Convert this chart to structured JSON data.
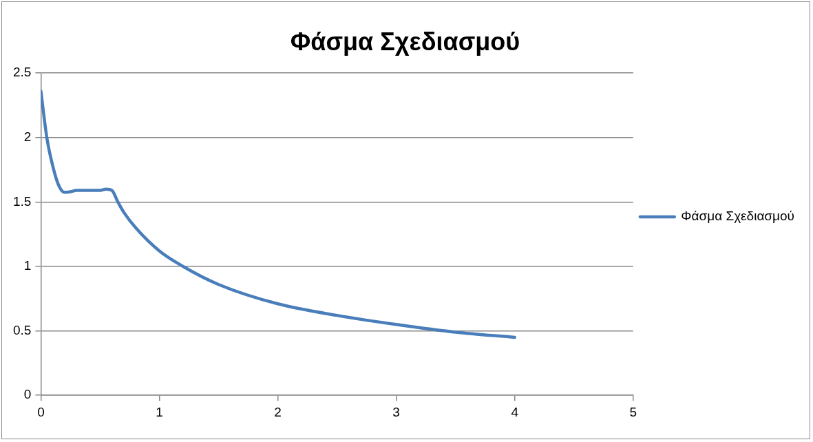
{
  "chart_data": {
    "type": "line",
    "title": "Φάσμα Σχεδιασμού",
    "series": [
      {
        "name": "Φάσμα Σχεδιασμού",
        "color": "#4a7ebb",
        "x": [
          0,
          0.05,
          0.1,
          0.15,
          0.2,
          0.25,
          0.3,
          0.4,
          0.5,
          0.55,
          0.6,
          0.65,
          0.7,
          0.8,
          1,
          1.2,
          1.5,
          2,
          2.5,
          3,
          3.5,
          4
        ],
        "values": [
          2.36,
          2.0,
          1.78,
          1.63,
          1.575,
          1.58,
          1.59,
          1.59,
          1.59,
          1.6,
          1.59,
          1.5,
          1.42,
          1.3,
          1.12,
          1.0,
          0.86,
          0.71,
          0.62,
          0.55,
          0.49,
          0.45
        ]
      }
    ],
    "xlim": [
      0,
      5
    ],
    "xticks": [
      0,
      1,
      2,
      3,
      4,
      5
    ],
    "ylim": [
      0,
      2.5
    ],
    "yticks": [
      0,
      0.5,
      1,
      1.5,
      2,
      2.5
    ],
    "grid": "y",
    "legend": "right",
    "marker": "none",
    "line_style": "solid"
  }
}
